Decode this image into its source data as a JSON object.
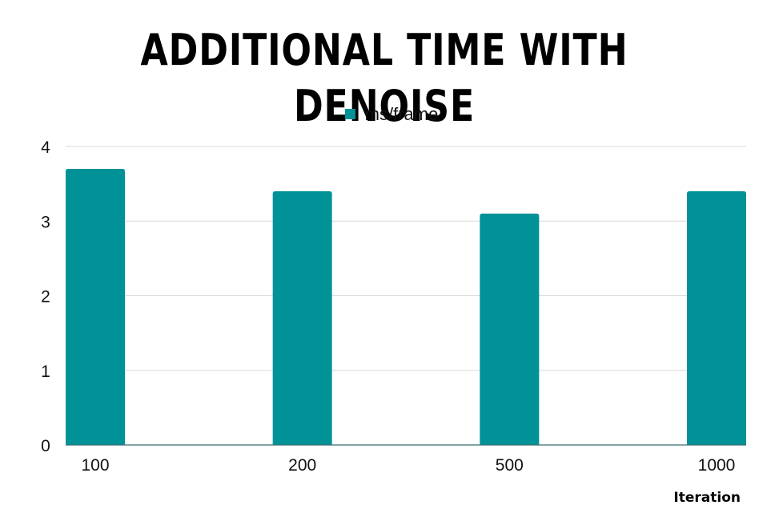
{
  "chart_data": {
    "type": "bar",
    "title": "ADDITIONAL TIME WITH DENOISE",
    "categories": [
      "100",
      "200",
      "500",
      "1000"
    ],
    "series": [
      {
        "name": "ms/frame",
        "values": [
          3.7,
          3.4,
          3.1,
          3.4
        ],
        "color": "#009297"
      }
    ],
    "xlabel": "Iteration",
    "ylabel": "",
    "ylim": [
      0,
      4
    ],
    "yticks": [
      "0",
      "1",
      "2",
      "3",
      "4"
    ],
    "grid": true,
    "legend_position": "top-center"
  }
}
